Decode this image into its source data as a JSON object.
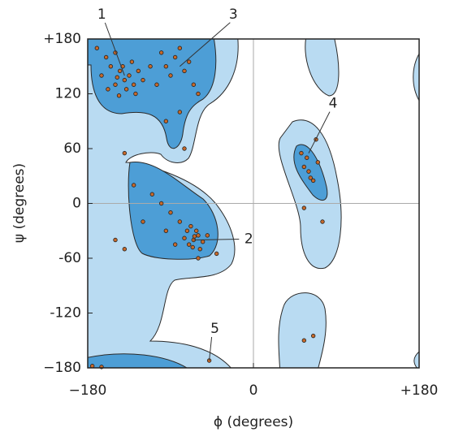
{
  "chart_data": {
    "type": "scatter",
    "xlabel": "ϕ (degrees)",
    "ylabel": "ψ (degrees)",
    "xlim": [
      -180,
      180
    ],
    "ylim": [
      -180,
      180
    ],
    "xticks": [
      {
        "value": -180,
        "label": "−180"
      },
      0,
      {
        "value": 180,
        "label": "+180"
      }
    ],
    "yticks": [
      {
        "value": 180,
        "label": "+180"
      },
      120,
      60,
      0,
      -60,
      -120,
      {
        "value": -180,
        "label": "−180"
      }
    ],
    "color": "#c8692a",
    "edgecolor": "#222222",
    "x": [
      -140,
      -135,
      -145,
      -150,
      -130,
      -155,
      -160,
      -125,
      -138,
      -148,
      -142,
      -132,
      -165,
      -120,
      -150,
      -170,
      -128,
      -158,
      -112,
      -146,
      -95,
      -85,
      -75,
      -65,
      -90,
      -100,
      -80,
      -70,
      -105,
      -60,
      -65,
      -60,
      -70,
      -62,
      -55,
      -68,
      -75,
      -58,
      -66,
      -72,
      -64,
      -80,
      -90,
      -100,
      -110,
      -120,
      -50,
      -85,
      -95,
      -140,
      -130,
      -150,
      -80,
      -75,
      -140,
      -95,
      -60,
      -40,
      55,
      60,
      65,
      58,
      70,
      52,
      68,
      62,
      75,
      55,
      55,
      65,
      -48,
      -175,
      -165
    ],
    "values": [
      135,
      140,
      145,
      130,
      130,
      150,
      160,
      145,
      125,
      138,
      150,
      155,
      140,
      135,
      165,
      170,
      120,
      125,
      150,
      118,
      150,
      160,
      145,
      130,
      140,
      165,
      170,
      155,
      130,
      120,
      -40,
      -35,
      -45,
      -30,
      -42,
      -25,
      -38,
      -50,
      -48,
      -30,
      -36,
      -20,
      -10,
      0,
      10,
      -20,
      -35,
      -45,
      -30,
      -50,
      20,
      -40,
      100,
      60,
      55,
      90,
      -60,
      -55,
      40,
      35,
      25,
      50,
      45,
      55,
      70,
      28,
      -20,
      -5,
      -150,
      -145,
      -172,
      -178,
      -179
    ],
    "annotations": [
      {
        "text": "1",
        "x": -140,
        "y": 140
      },
      {
        "text": "2",
        "x": -65,
        "y": -40
      },
      {
        "text": "3",
        "x": -80,
        "y": 150
      },
      {
        "text": "4",
        "x": 60,
        "y": 55
      },
      {
        "text": "5",
        "x": -48,
        "y": -172
      }
    ]
  }
}
